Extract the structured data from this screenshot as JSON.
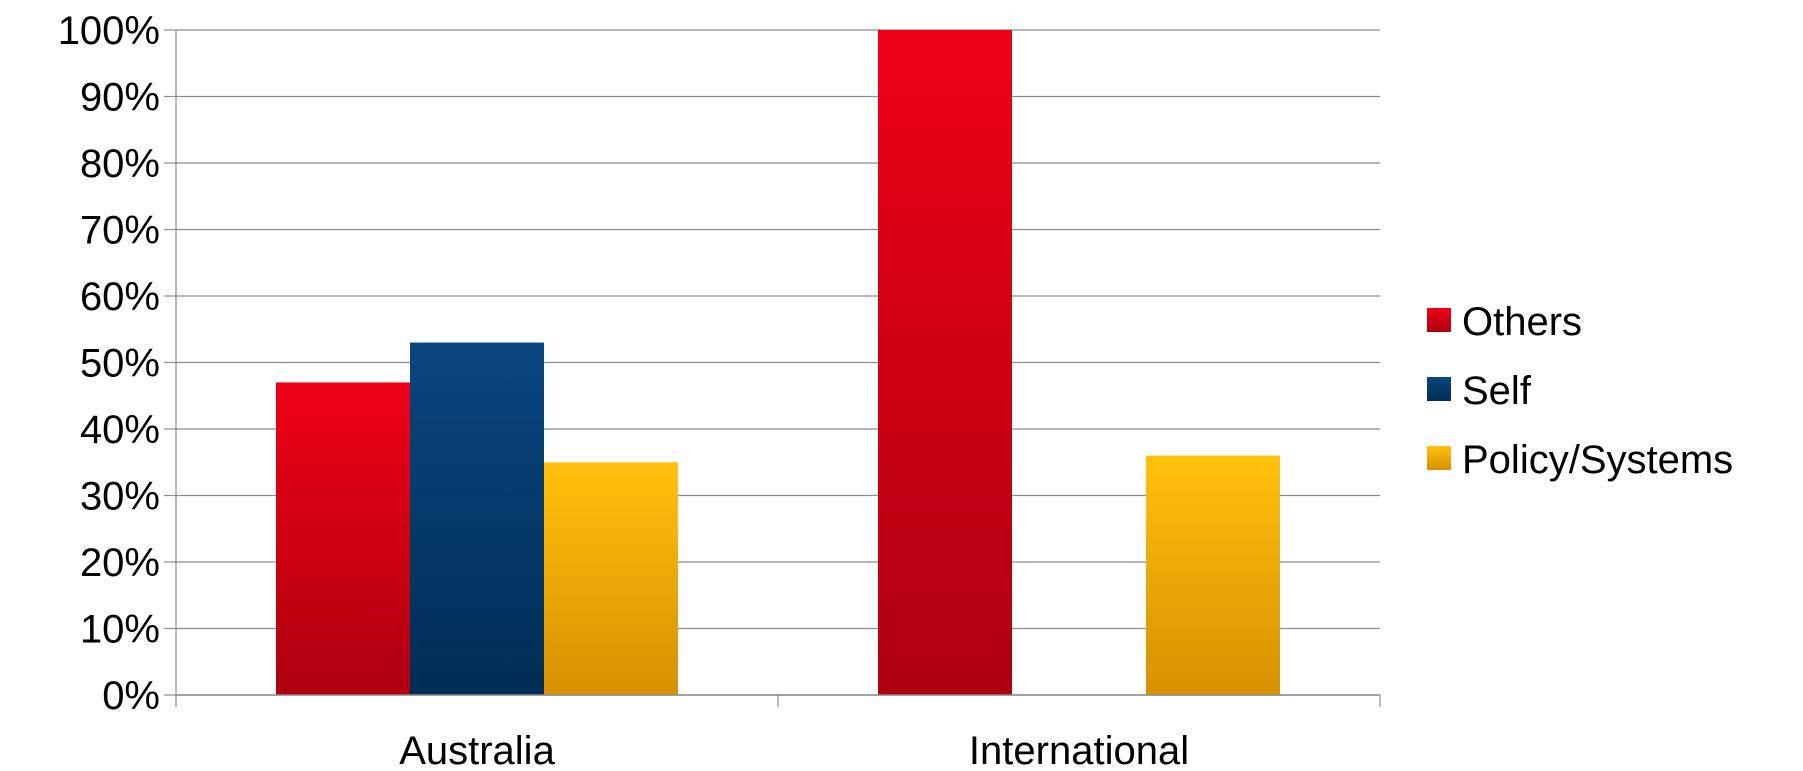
{
  "chart_data": {
    "type": "bar",
    "title": "",
    "xlabel": "",
    "ylabel": "",
    "categories": [
      "Australia",
      "International"
    ],
    "series": [
      {
        "name": "Others",
        "values": [
          47,
          100
        ],
        "color": "#d9001b"
      },
      {
        "name": "Self",
        "values": [
          53,
          0
        ],
        "color": "#0a3d73"
      },
      {
        "name": "Policy/Systems",
        "values": [
          35,
          36
        ],
        "color": "#f2b100"
      }
    ],
    "ylim": [
      0,
      100
    ],
    "yticks": [
      "0%",
      "10%",
      "20%",
      "30%",
      "40%",
      "50%",
      "60%",
      "70%",
      "80%",
      "90%",
      "100%"
    ],
    "grid": true,
    "legend": "right"
  }
}
